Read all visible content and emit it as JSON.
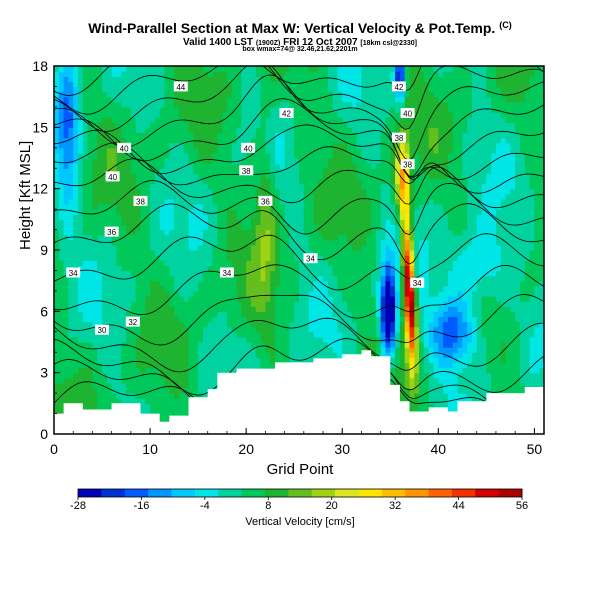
{
  "header": {
    "title": "Wind-Parallel Section at Max W: Vertical Velocity & Pot.Temp.",
    "title_badge": "(C)",
    "subtitle_main": "Valid 1400 LST",
    "subtitle_small1": "(1900Z)",
    "subtitle_date": "FRI 12 Oct 2007",
    "subtitle_small2": "[18km csl@2330]",
    "line3": "box wmax=74@ 32.46,21.62,2201m"
  },
  "chart_data": {
    "type": "heatmap",
    "xlabel": "Grid Point",
    "ylabel": "Height [Kft MSL]",
    "xlim": [
      0,
      51
    ],
    "ylim": [
      0,
      18
    ],
    "x_ticks": [
      "0",
      "10",
      "20",
      "30",
      "40",
      "50"
    ],
    "y_ticks": [
      "0",
      "3",
      "6",
      "9",
      "12",
      "15",
      "18"
    ],
    "colorbar": {
      "label": "Vertical Velocity [cm/s]",
      "tick_labels": [
        "-28",
        "-16",
        "-4",
        "8",
        "20",
        "32",
        "44",
        "56"
      ],
      "min": -28,
      "max": 56,
      "colors": [
        "#0000b4",
        "#0032d2",
        "#005aff",
        "#0096ff",
        "#00c8ff",
        "#00e6e6",
        "#00d2a0",
        "#00c85a",
        "#1eb432",
        "#64be1e",
        "#a0d214",
        "#dce61e",
        "#ffe600",
        "#ffbe00",
        "#ff9600",
        "#ff6400",
        "#f03200",
        "#d20000",
        "#aa0000"
      ]
    },
    "contour_labels": [
      {
        "label": "44",
        "x": 13.2,
        "y": 17.0
      },
      {
        "label": "42",
        "x": 35.9,
        "y": 17.0
      },
      {
        "label": "42",
        "x": 24.2,
        "y": 15.7
      },
      {
        "label": "40",
        "x": 36.8,
        "y": 15.7
      },
      {
        "label": "40",
        "x": 7.3,
        "y": 14.0
      },
      {
        "label": "40",
        "x": 20.2,
        "y": 14.0
      },
      {
        "label": "38",
        "x": 35.9,
        "y": 14.5
      },
      {
        "label": "38",
        "x": 36.8,
        "y": 13.2
      },
      {
        "label": "40",
        "x": 6.1,
        "y": 12.6
      },
      {
        "label": "38",
        "x": 20.0,
        "y": 12.9
      },
      {
        "label": "38",
        "x": 9.0,
        "y": 11.4
      },
      {
        "label": "36",
        "x": 22.0,
        "y": 11.4
      },
      {
        "label": "36",
        "x": 6.0,
        "y": 9.9
      },
      {
        "label": "34",
        "x": 2.0,
        "y": 7.9
      },
      {
        "label": "34",
        "x": 18.0,
        "y": 7.9
      },
      {
        "label": "34",
        "x": 26.7,
        "y": 8.6
      },
      {
        "label": "34",
        "x": 37.8,
        "y": 7.4
      },
      {
        "label": "32",
        "x": 8.2,
        "y": 5.5
      },
      {
        "label": "30",
        "x": 5.0,
        "y": 5.1
      }
    ]
  }
}
